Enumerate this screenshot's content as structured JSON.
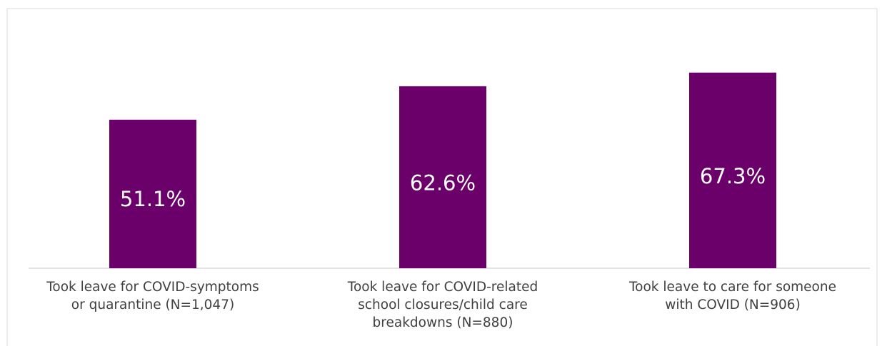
{
  "chart_data": {
    "type": "bar",
    "categories": [
      [
        "Took leave for COVID-symptoms",
        "or quarantine (N=1,047)"
      ],
      [
        "Took leave for COVID-related",
        "school closures/child care",
        "breakdowns (N=880)"
      ],
      [
        "Took leave to care for someone",
        "with COVID (N=906)"
      ]
    ],
    "values": [
      51.1,
      62.6,
      67.3
    ],
    "value_labels": [
      "51.1%",
      "62.6%",
      "67.3%"
    ],
    "title": "",
    "xlabel": "",
    "ylabel": "",
    "ylim": [
      0,
      80
    ],
    "grid": false,
    "legend": "none",
    "colors": {
      "bar": "#6b006b",
      "value_label": "#ffffff",
      "category_label": "#404040",
      "axis": "#d9d9d9",
      "frame": "#d9d9d9"
    }
  }
}
